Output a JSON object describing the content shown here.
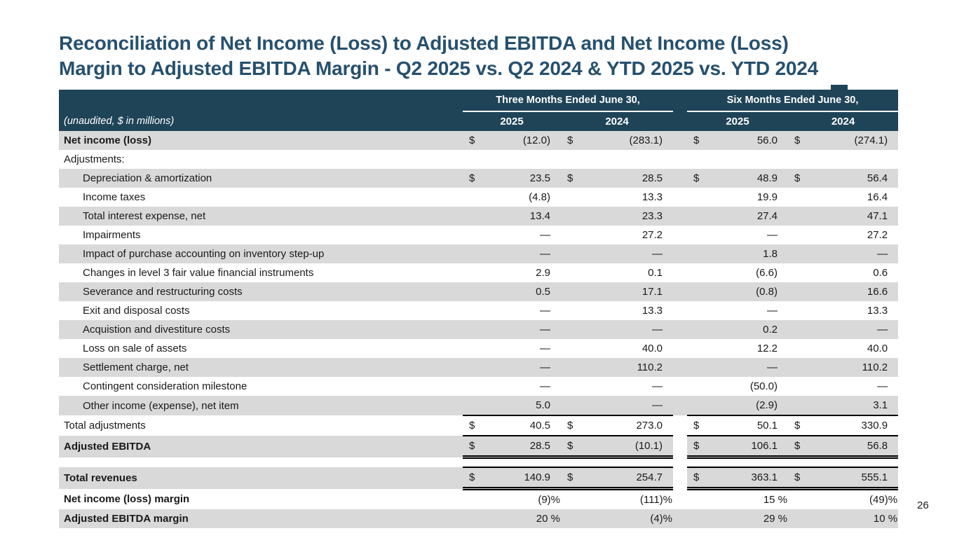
{
  "slide": {
    "title_line1": "Reconciliation of Net Income (Loss) to Adjusted EBITDA and Net Income (Loss)",
    "title_line2": "Margin to Adjusted EBITDA Margin - Q2 2025 vs. Q2 2024 & YTD 2025 vs. YTD 2024",
    "page_number": "26"
  },
  "colors": {
    "header_bg": "#1F4458",
    "title_text": "#26506F",
    "row_stripe": "#D9D9D9",
    "body_text": "#1A1A1A"
  },
  "table": {
    "unit_note": "(unaudited, $ in millions)",
    "groups": [
      {
        "label": "Three Months Ended June 30,",
        "years": [
          "2025",
          "2024"
        ]
      },
      {
        "label": "Six Months Ended June 30,",
        "years": [
          "2025",
          "2024"
        ]
      }
    ],
    "rows": [
      {
        "label": "Net income (loss)",
        "bold": true,
        "shade": true,
        "cells": [
          {
            "d": "$",
            "v": "(12.0)"
          },
          {
            "d": "$",
            "v": "(283.1)"
          },
          {
            "d": "$",
            "v": "56.0"
          },
          {
            "d": "$",
            "v": "(274.1)"
          }
        ]
      },
      {
        "label": "Adjustments:",
        "cells": [
          {
            "d": "",
            "v": ""
          },
          {
            "d": "",
            "v": ""
          },
          {
            "d": "",
            "v": ""
          },
          {
            "d": "",
            "v": ""
          }
        ]
      },
      {
        "label": "Depreciation & amortization",
        "indent": true,
        "shade": true,
        "cells": [
          {
            "d": "$",
            "v": "23.5"
          },
          {
            "d": "$",
            "v": "28.5"
          },
          {
            "d": "$",
            "v": "48.9"
          },
          {
            "d": "$",
            "v": "56.4"
          }
        ]
      },
      {
        "label": "Income taxes",
        "indent": true,
        "cells": [
          {
            "d": "",
            "v": "(4.8)"
          },
          {
            "d": "",
            "v": "13.3"
          },
          {
            "d": "",
            "v": "19.9"
          },
          {
            "d": "",
            "v": "16.4"
          }
        ]
      },
      {
        "label": "Total interest expense, net",
        "indent": true,
        "shade": true,
        "cells": [
          {
            "d": "",
            "v": "13.4"
          },
          {
            "d": "",
            "v": "23.3"
          },
          {
            "d": "",
            "v": "27.4"
          },
          {
            "d": "",
            "v": "47.1"
          }
        ]
      },
      {
        "label": "Impairments",
        "indent": true,
        "cells": [
          {
            "d": "",
            "v": "—"
          },
          {
            "d": "",
            "v": "27.2"
          },
          {
            "d": "",
            "v": "—"
          },
          {
            "d": "",
            "v": "27.2"
          }
        ]
      },
      {
        "label": "Impact of purchase accounting on inventory step-up",
        "indent": true,
        "shade": true,
        "cells": [
          {
            "d": "",
            "v": "—"
          },
          {
            "d": "",
            "v": "—"
          },
          {
            "d": "",
            "v": "1.8"
          },
          {
            "d": "",
            "v": "—"
          }
        ]
      },
      {
        "label": "Changes in level 3 fair value financial instruments",
        "indent": true,
        "cells": [
          {
            "d": "",
            "v": "2.9"
          },
          {
            "d": "",
            "v": "0.1"
          },
          {
            "d": "",
            "v": "(6.6)"
          },
          {
            "d": "",
            "v": "0.6"
          }
        ]
      },
      {
        "label": "Severance and restructuring costs",
        "indent": true,
        "shade": true,
        "cells": [
          {
            "d": "",
            "v": "0.5"
          },
          {
            "d": "",
            "v": "17.1"
          },
          {
            "d": "",
            "v": "(0.8)"
          },
          {
            "d": "",
            "v": "16.6"
          }
        ]
      },
      {
        "label": "Exit and disposal costs",
        "indent": true,
        "cells": [
          {
            "d": "",
            "v": "—"
          },
          {
            "d": "",
            "v": "13.3"
          },
          {
            "d": "",
            "v": "—"
          },
          {
            "d": "",
            "v": "13.3"
          }
        ]
      },
      {
        "label": "Acquistion and divestiture costs",
        "indent": true,
        "shade": true,
        "cells": [
          {
            "d": "",
            "v": "—"
          },
          {
            "d": "",
            "v": "—"
          },
          {
            "d": "",
            "v": "0.2"
          },
          {
            "d": "",
            "v": "—"
          }
        ]
      },
      {
        "label": "Loss on sale of assets",
        "indent": true,
        "cells": [
          {
            "d": "",
            "v": "—"
          },
          {
            "d": "",
            "v": "40.0"
          },
          {
            "d": "",
            "v": "12.2"
          },
          {
            "d": "",
            "v": "40.0"
          }
        ]
      },
      {
        "label": "Settlement charge, net",
        "indent": true,
        "shade": true,
        "cells": [
          {
            "d": "",
            "v": "—"
          },
          {
            "d": "",
            "v": "110.2"
          },
          {
            "d": "",
            "v": "—"
          },
          {
            "d": "",
            "v": "110.2"
          }
        ]
      },
      {
        "label": "Contingent consideration milestone",
        "indent": true,
        "cells": [
          {
            "d": "",
            "v": "—"
          },
          {
            "d": "",
            "v": "—"
          },
          {
            "d": "",
            "v": "(50.0)"
          },
          {
            "d": "",
            "v": "—"
          }
        ]
      },
      {
        "label": "Other income (expense), net item",
        "indent": true,
        "shade": true,
        "cells": [
          {
            "d": "",
            "v": "5.0"
          },
          {
            "d": "",
            "v": "—"
          },
          {
            "d": "",
            "v": "(2.9)"
          },
          {
            "d": "",
            "v": "3.1"
          }
        ]
      },
      {
        "label": "Total adjustments",
        "rule": "ta",
        "break_gap": true,
        "cells": [
          {
            "d": "$",
            "v": "40.5"
          },
          {
            "d": "$",
            "v": "273.0"
          },
          {
            "d": "$",
            "v": "50.1"
          },
          {
            "d": "$",
            "v": "330.9"
          }
        ]
      },
      {
        "label": "Adjusted EBITDA",
        "bold": true,
        "shade": true,
        "rule": "dbl",
        "break_gap": true,
        "cells": [
          {
            "d": "$",
            "v": "28.5"
          },
          {
            "d": "$",
            "v": "(10.1)"
          },
          {
            "d": "$",
            "v": "106.1"
          },
          {
            "d": "$",
            "v": "56.8"
          }
        ]
      },
      {
        "spacer": true
      },
      {
        "label": "Total revenues",
        "bold": true,
        "shade": true,
        "rule": "topdbl",
        "break_gap": true,
        "cells": [
          {
            "d": "$",
            "v": "140.9"
          },
          {
            "d": "$",
            "v": "254.7"
          },
          {
            "d": "$",
            "v": "363.1"
          },
          {
            "d": "$",
            "v": "555.1"
          }
        ]
      },
      {
        "label": "Net income (loss) margin",
        "bold": true,
        "pct": true,
        "cells": [
          {
            "d": "",
            "v": "(9)%"
          },
          {
            "d": "",
            "v": "(111)%"
          },
          {
            "d": "",
            "v": "15 %"
          },
          {
            "d": "",
            "v": "(49)%"
          }
        ]
      },
      {
        "label": "Adjusted EBITDA margin",
        "bold": true,
        "shade": true,
        "pct": true,
        "cells": [
          {
            "d": "",
            "v": "20 %"
          },
          {
            "d": "",
            "v": "(4)%"
          },
          {
            "d": "",
            "v": "29 %"
          },
          {
            "d": "",
            "v": "10 %"
          }
        ]
      }
    ]
  }
}
